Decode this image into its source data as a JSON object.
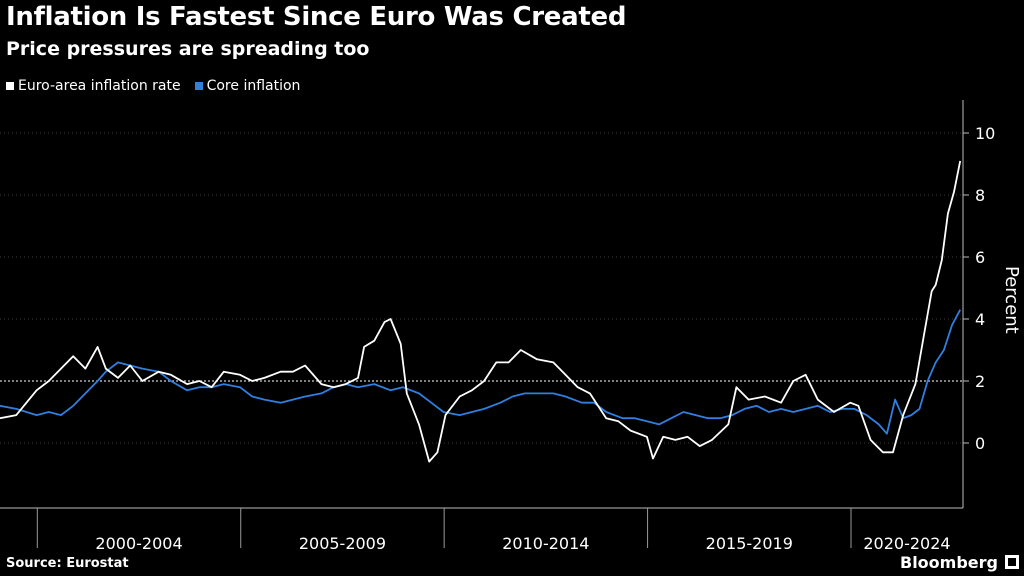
{
  "title": "Inflation Is Fastest Since Euro Was Created",
  "subtitle": "Price pressures are spreading too",
  "legend": [
    {
      "label": "Euro-area inflation rate",
      "color": "#ffffff"
    },
    {
      "label": "Core inflation",
      "color": "#2f7fe0"
    }
  ],
  "source": "Source: Eurostat",
  "brand": "Bloomberg",
  "chart_data": {
    "type": "line",
    "ylabel": "Percent",
    "ylim": [
      -2,
      11
    ],
    "yticks": [
      0,
      2,
      4,
      6,
      8,
      10
    ],
    "reference_lines": [
      2
    ],
    "x_range": [
      1999.0,
      2022.67
    ],
    "period_labels": [
      "2000-2004",
      "2005-2009",
      "2010-2014",
      "2015-2019",
      "2020-2024"
    ],
    "period_boundaries": [
      1999.917,
      2004.917,
      2009.917,
      2014.917,
      2019.917
    ],
    "series": [
      {
        "name": "Euro-area inflation rate",
        "color": "#ffffff",
        "x": [
          1999.0,
          1999.4,
          1999.9,
          2000.2,
          2000.5,
          2000.8,
          2001.1,
          2001.4,
          2001.6,
          2001.9,
          2002.2,
          2002.5,
          2002.9,
          2003.2,
          2003.6,
          2003.9,
          2004.2,
          2004.5,
          2004.9,
          2005.2,
          2005.5,
          2005.9,
          2006.2,
          2006.5,
          2006.9,
          2007.2,
          2007.5,
          2007.8,
          2007.95,
          2008.2,
          2008.45,
          2008.6,
          2008.85,
          2009.0,
          2009.3,
          2009.55,
          2009.75,
          2009.95,
          2010.3,
          2010.6,
          2010.9,
          2011.2,
          2011.5,
          2011.8,
          2012.2,
          2012.6,
          2012.9,
          2013.2,
          2013.5,
          2013.9,
          2014.2,
          2014.5,
          2014.9,
          2015.05,
          2015.3,
          2015.6,
          2015.9,
          2016.2,
          2016.5,
          2016.9,
          2017.1,
          2017.4,
          2017.8,
          2018.2,
          2018.5,
          2018.8,
          2019.1,
          2019.5,
          2019.9,
          2020.1,
          2020.4,
          2020.7,
          2020.95,
          2021.2,
          2021.5,
          2021.7,
          2021.9,
          2022.0,
          2022.15,
          2022.3,
          2022.45,
          2022.6
        ],
        "values": [
          0.8,
          0.9,
          1.7,
          2.0,
          2.4,
          2.8,
          2.4,
          3.1,
          2.4,
          2.1,
          2.5,
          2.0,
          2.3,
          2.2,
          1.9,
          2.0,
          1.8,
          2.3,
          2.2,
          2.0,
          2.1,
          2.3,
          2.3,
          2.5,
          1.9,
          1.8,
          1.9,
          2.1,
          3.1,
          3.3,
          3.9,
          4.0,
          3.2,
          1.6,
          0.6,
          -0.6,
          -0.3,
          0.9,
          1.5,
          1.7,
          2.0,
          2.6,
          2.6,
          3.0,
          2.7,
          2.6,
          2.2,
          1.8,
          1.6,
          0.8,
          0.7,
          0.4,
          0.2,
          -0.5,
          0.2,
          0.1,
          0.2,
          -0.1,
          0.1,
          0.6,
          1.8,
          1.4,
          1.5,
          1.3,
          2.0,
          2.2,
          1.4,
          1.0,
          1.3,
          1.2,
          0.1,
          -0.3,
          -0.3,
          0.9,
          1.9,
          3.4,
          4.9,
          5.1,
          5.9,
          7.4,
          8.1,
          9.1
        ]
      },
      {
        "name": "Core inflation",
        "color": "#2f7fe0",
        "x": [
          1999.0,
          1999.4,
          1999.9,
          2000.2,
          2000.5,
          2000.8,
          2001.1,
          2001.4,
          2001.6,
          2001.9,
          2002.2,
          2002.5,
          2002.9,
          2003.2,
          2003.6,
          2003.9,
          2004.2,
          2004.5,
          2004.9,
          2005.2,
          2005.5,
          2005.9,
          2006.2,
          2006.5,
          2006.9,
          2007.2,
          2007.5,
          2007.8,
          2008.2,
          2008.6,
          2008.9,
          2009.3,
          2009.6,
          2009.9,
          2010.3,
          2010.6,
          2010.9,
          2011.3,
          2011.6,
          2011.9,
          2012.3,
          2012.6,
          2012.9,
          2013.3,
          2013.6,
          2013.9,
          2014.3,
          2014.6,
          2014.9,
          2015.2,
          2015.5,
          2015.8,
          2016.1,
          2016.4,
          2016.7,
          2017.0,
          2017.3,
          2017.6,
          2017.9,
          2018.2,
          2018.5,
          2018.8,
          2019.1,
          2019.4,
          2019.7,
          2020.0,
          2020.3,
          2020.6,
          2020.8,
          2021.0,
          2021.2,
          2021.4,
          2021.6,
          2021.8,
          2022.0,
          2022.2,
          2022.4,
          2022.6
        ],
        "values": [
          1.2,
          1.1,
          0.9,
          1.0,
          0.9,
          1.2,
          1.6,
          2.0,
          2.3,
          2.6,
          2.5,
          2.4,
          2.3,
          2.0,
          1.7,
          1.8,
          1.8,
          1.9,
          1.8,
          1.5,
          1.4,
          1.3,
          1.4,
          1.5,
          1.6,
          1.8,
          1.9,
          1.8,
          1.9,
          1.7,
          1.8,
          1.6,
          1.3,
          1.0,
          0.9,
          1.0,
          1.1,
          1.3,
          1.5,
          1.6,
          1.6,
          1.6,
          1.5,
          1.3,
          1.3,
          1.0,
          0.8,
          0.8,
          0.7,
          0.6,
          0.8,
          1.0,
          0.9,
          0.8,
          0.8,
          0.9,
          1.1,
          1.2,
          1.0,
          1.1,
          1.0,
          1.1,
          1.2,
          1.0,
          1.1,
          1.1,
          0.9,
          0.6,
          0.3,
          1.4,
          0.8,
          0.9,
          1.1,
          2.0,
          2.6,
          3.0,
          3.8,
          4.3
        ]
      }
    ]
  }
}
